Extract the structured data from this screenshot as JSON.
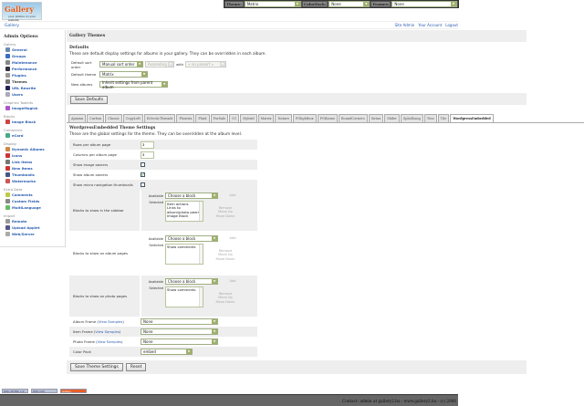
{
  "logo": {
    "text": "Gallery",
    "subtitle": "your photos on your website"
  },
  "topbar": {
    "theme_label": "Theme:",
    "theme_value": "Matrix",
    "colorpack_label": "ColorPack:",
    "colorpack_value": "None",
    "frames_label": "Frames:",
    "frames_value": "None"
  },
  "breadcrumb": "Gallery",
  "toplinks": [
    "Site Admin",
    "Your Account",
    "Logout"
  ],
  "sidebar": {
    "title": "Admin Options",
    "groups": [
      {
        "label": "Gallery",
        "items": [
          {
            "label": "General",
            "icon": "general-icon",
            "color": "#6a8ab0"
          },
          {
            "label": "Groups",
            "icon": "groups-icon",
            "color": "#3a6fc0"
          },
          {
            "label": "Maintenance",
            "icon": "maintenance-icon",
            "color": "#888"
          },
          {
            "label": "Performance",
            "icon": "performance-icon",
            "color": "#334"
          },
          {
            "label": "Plugins",
            "icon": "plugins-icon",
            "color": "#999"
          },
          {
            "label": "Themes",
            "icon": "themes-icon",
            "color": "#777",
            "current": true
          },
          {
            "label": "URL Rewrite",
            "icon": "url-rewrite-icon",
            "color": "#225"
          },
          {
            "label": "Users",
            "icon": "users-icon",
            "color": "#aab"
          }
        ]
      },
      {
        "label": "Graphics Toolkits",
        "items": [
          {
            "label": "ImageMagick",
            "icon": "imagemagick-icon",
            "color": "#a5c"
          }
        ]
      },
      {
        "label": "Blocks",
        "items": [
          {
            "label": "Image Block",
            "icon": "image-block-icon",
            "color": "#c44"
          }
        ]
      },
      {
        "label": "Commerce",
        "items": [
          {
            "label": "eCard",
            "icon": "ecard-icon",
            "color": "#4a8"
          }
        ]
      },
      {
        "label": "Display",
        "items": [
          {
            "label": "Dynamic Albums",
            "icon": "dynamic-albums-icon",
            "color": "#c84"
          },
          {
            "label": "Icons",
            "icon": "icons-icon",
            "color": "#c33"
          },
          {
            "label": "Link Items",
            "icon": "link-items-icon",
            "color": "#777"
          },
          {
            "label": "New Items",
            "icon": "new-items-icon",
            "color": "#c33"
          },
          {
            "label": "Thumbnails",
            "icon": "thumbnails-icon",
            "color": "#458"
          },
          {
            "label": "Watermarks",
            "icon": "watermarks-icon",
            "color": "#c55"
          }
        ]
      },
      {
        "label": "Extra Data",
        "items": [
          {
            "label": "Comments",
            "icon": "comments-icon",
            "color": "#bc4"
          },
          {
            "label": "Custom Fields",
            "icon": "custom-fields-icon",
            "color": "#888"
          },
          {
            "label": "MultiLanguage",
            "icon": "multilanguage-icon",
            "color": "#6b6"
          }
        ]
      },
      {
        "label": "Import",
        "items": [
          {
            "label": "Remote",
            "icon": "remote-icon",
            "color": "#999"
          },
          {
            "label": "Upload Applet",
            "icon": "upload-applet-icon",
            "color": "#558"
          },
          {
            "label": "Web/Server",
            "icon": "web-server-icon",
            "color": "#aaa"
          }
        ]
      }
    ]
  },
  "main": {
    "title": "Gallery Themes",
    "defaults_heading": "Defaults",
    "defaults_desc": "These are default display settings for albums in your gallery. They can be overridden in each album.",
    "sort_label": "Default sort order",
    "sort_value": "Manual sort order",
    "sort_dir": "Ascending",
    "with_label": "with",
    "with_value": "« no presort »",
    "theme_label": "Default theme",
    "theme_value": "Matrix",
    "new_albums_label": "New albums",
    "new_albums_value": "Inherit settings from parent album",
    "save_defaults": "Save Defaults"
  },
  "tabs": [
    "Ajaxian",
    "Carbon",
    "Classic",
    "CopyLeft",
    "EclecticThreads",
    "Floatrix",
    "Fluid",
    "ForSale",
    "G1",
    "Hybrid",
    "Matrix",
    "Nature",
    "PGlightbox",
    "PGtheme",
    "RoundCorners",
    "Siriux",
    "Slider",
    "SplaShang",
    "Tess",
    "Tile",
    "WordpressEmbedded"
  ],
  "active_tab": "WordpressEmbedded",
  "settings": {
    "heading": "WordpressEmbedded Theme Settings",
    "desc": "These are the global settings for the theme. They can be overridden at the album level.",
    "rows_label": "Rows per album page",
    "rows_value": "3",
    "cols_label": "Columns per album page",
    "cols_value": "3",
    "image_owners_label": "Show image owners",
    "image_owners": false,
    "album_owners_label": "Show album owners",
    "album_owners": true,
    "micro_nav_label": "Show micro navigation thumbnails",
    "micro_nav": false,
    "available_label": "Available",
    "selected_label": "Selected",
    "choose": "Choose a block",
    "add": "Add",
    "remove": "Remove",
    "move_up": "Move Up",
    "move_down": "Move Down",
    "sidebar_blocks_label": "Blocks to show in the sidebar",
    "sidebar_blocks": [
      "Item actions",
      "Links to album/photo peers",
      "Image Block"
    ],
    "album_blocks_label": "Blocks to show on album pages",
    "album_blocks": [
      "Show comments"
    ],
    "photo_blocks_label": "Blocks to show on photo pages",
    "photo_blocks": [
      "Show comments"
    ],
    "view_samples": "View Samples",
    "album_frame_label": "Album Frame",
    "album_frame": "None",
    "item_frame_label": "Item Frame",
    "item_frame": "None",
    "photo_frame_label": "Photo Frame",
    "photo_frame": "None",
    "color_pack_label": "Color Pack",
    "color_pack": "embed",
    "save": "Save Theme Settings",
    "reset": "Reset"
  },
  "badges": [
    "W3C XHTML 1.0",
    "W3C CSS",
    "Gallery"
  ],
  "footer": "Contact: admin at gallery2.hu - www.gallery2.hu - (c) 2006"
}
